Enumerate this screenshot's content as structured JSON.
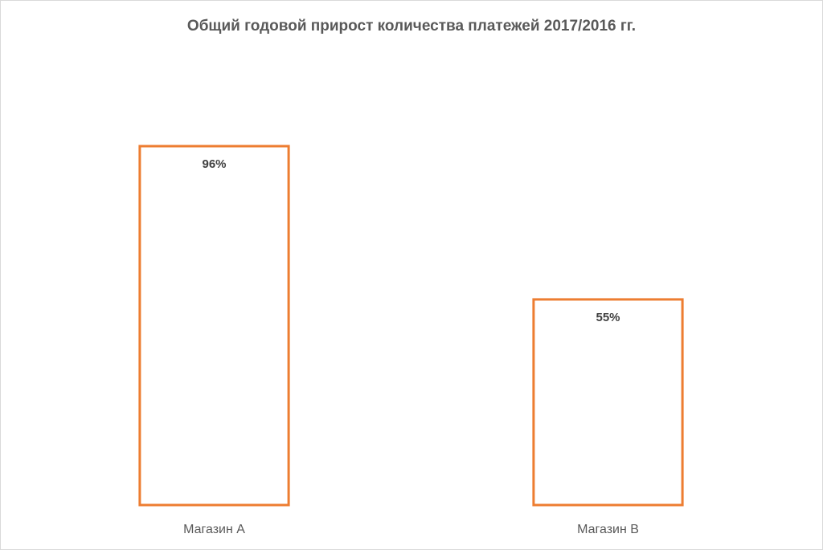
{
  "chart_data": {
    "type": "bar",
    "title": "Общий годовой прирост количества платежей 2017/2016 гг.",
    "categories": [
      "Магазин А",
      "Магазин В"
    ],
    "values": [
      96,
      55
    ],
    "value_labels": [
      "96%",
      "55%"
    ],
    "color": "#ed7d31",
    "ylim": [
      0,
      100
    ]
  }
}
